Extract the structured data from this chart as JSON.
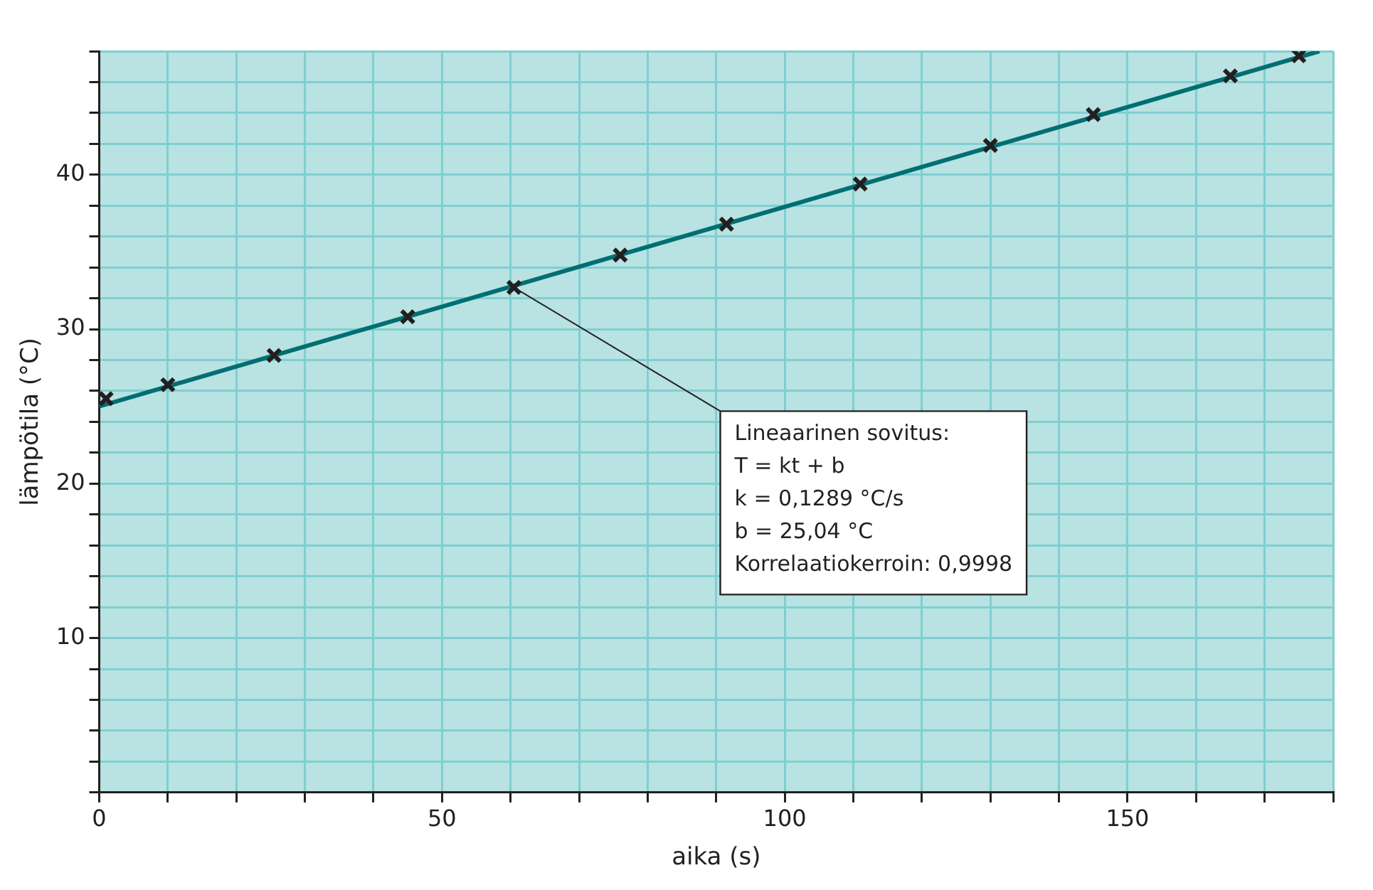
{
  "chart_data": {
    "type": "scatter",
    "xlabel": "aika (s)",
    "ylabel": "lämpötila (°C)",
    "xlim": [
      0,
      180
    ],
    "ylim": [
      0,
      48
    ],
    "xticks": [
      0,
      {
        "value": 10,
        "label": null
      },
      {
        "value": 20,
        "label": null
      },
      {
        "value": 30,
        "label": null
      },
      {
        "value": 40,
        "label": null
      },
      50,
      {
        "value": 60,
        "label": null
      },
      {
        "value": 70,
        "label": null
      },
      {
        "value": 80,
        "label": null
      },
      {
        "value": 90,
        "label": null
      },
      100,
      {
        "value": 110,
        "label": null
      },
      {
        "value": 120,
        "label": null
      },
      {
        "value": 130,
        "label": null
      },
      {
        "value": 140,
        "label": null
      },
      150,
      {
        "value": 160,
        "label": null
      },
      {
        "value": 170,
        "label": null
      },
      {
        "value": 180,
        "label": null
      }
    ],
    "yticks": [
      {
        "value": 0,
        "label": null
      },
      {
        "value": 2,
        "label": null
      },
      {
        "value": 4,
        "label": null
      },
      {
        "value": 6,
        "label": null
      },
      {
        "value": 8,
        "label": null
      },
      10,
      {
        "value": 12,
        "label": null
      },
      {
        "value": 14,
        "label": null
      },
      {
        "value": 16,
        "label": null
      },
      {
        "value": 18,
        "label": null
      },
      20,
      {
        "value": 22,
        "label": null
      },
      {
        "value": 24,
        "label": null
      },
      {
        "value": 26,
        "label": null
      },
      {
        "value": 28,
        "label": null
      },
      30,
      {
        "value": 32,
        "label": null
      },
      {
        "value": 34,
        "label": null
      },
      {
        "value": 36,
        "label": null
      },
      {
        "value": 38,
        "label": null
      },
      40,
      {
        "value": 42,
        "label": null
      },
      {
        "value": 44,
        "label": null
      },
      {
        "value": 46,
        "label": null
      },
      {
        "value": 48,
        "label": null
      }
    ],
    "grid": true,
    "legend": false,
    "series": [
      {
        "type": "line",
        "color": "#006f72",
        "marker": "none",
        "x": [
          0,
          178
        ],
        "values": [
          25,
          48
        ]
      },
      {
        "type": "scatter",
        "color": "#231f20",
        "marker": "cross",
        "x": [
          1,
          10,
          25.5,
          45,
          60.5,
          76,
          91.5,
          111,
          130,
          145,
          165,
          175
        ],
        "values": [
          25.5,
          26.4,
          28.3,
          30.8,
          32.7,
          34.8,
          36.8,
          39.4,
          41.9,
          43.9,
          46.4,
          47.7
        ]
      }
    ],
    "annotations": [
      {
        "text": "Lineaarinen sovitus:\nT = kt + b\nk = 0,1289 °C/s\nb = 25,04 °C\nKorrelaatiokerroin: 0,9998",
        "x": 60.5,
        "y": 32.7
      }
    ]
  }
}
